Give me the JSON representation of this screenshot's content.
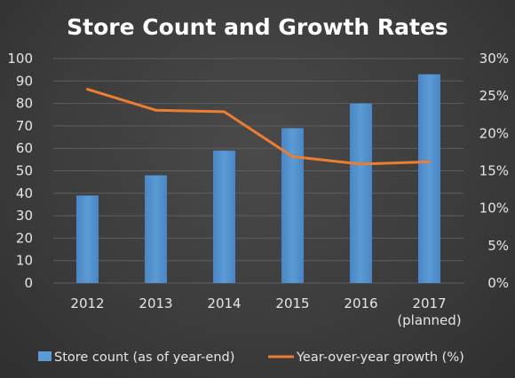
{
  "chart_data": {
    "type": "bar",
    "title": "Store Count and Growth Rates",
    "categories": [
      "2012",
      "2013",
      "2014",
      "2015",
      "2016",
      "2017\n(planned)"
    ],
    "series": [
      {
        "name": "Store count (as of year-end)",
        "type": "bar",
        "axis": "left",
        "color": "#5b9bd5",
        "values": [
          39,
          48,
          59,
          69,
          80,
          93
        ]
      },
      {
        "name": "Year-over-year growth (%)",
        "type": "line",
        "axis": "right",
        "color": "#ed7d31",
        "values": [
          25.9,
          23.1,
          22.9,
          16.9,
          15.9,
          16.2
        ]
      }
    ],
    "y_left": {
      "min": 0,
      "max": 100,
      "step": 10,
      "ticks": [
        "0",
        "10",
        "20",
        "30",
        "40",
        "50",
        "60",
        "70",
        "80",
        "90",
        "100"
      ]
    },
    "y_right": {
      "min": 0,
      "max": 30,
      "step": 5,
      "ticks": [
        "0%",
        "5%",
        "10%",
        "15%",
        "20%",
        "25%",
        "30%"
      ]
    },
    "grid": true,
    "legend": "bottom"
  }
}
